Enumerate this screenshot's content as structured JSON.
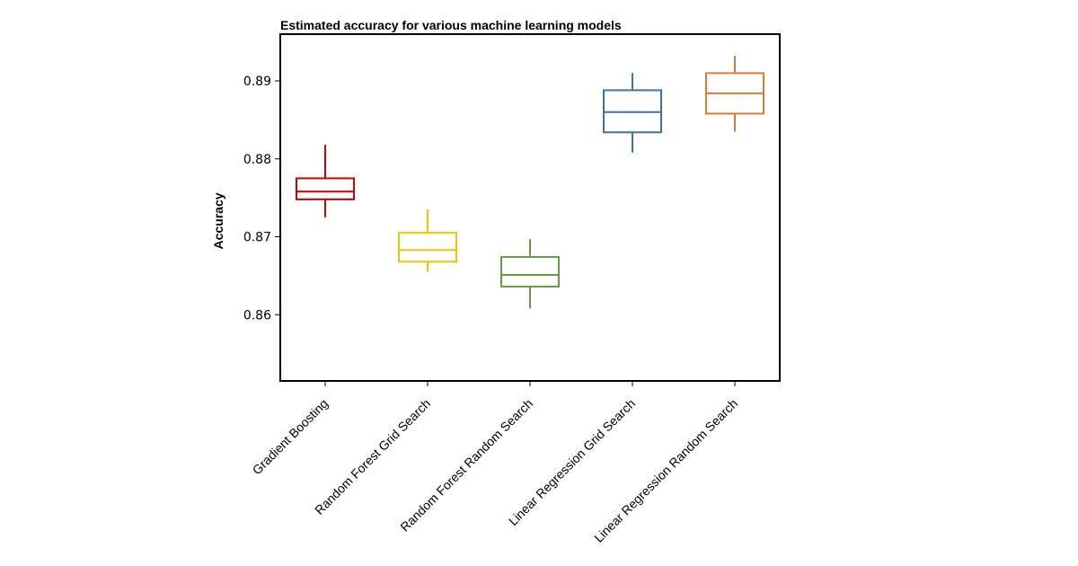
{
  "chart_data": {
    "type": "box",
    "title": "Estimated accuracy for various machine learning models",
    "xlabel": "",
    "ylabel": "Accuracy",
    "ylim": [
      0.8515,
      0.896
    ],
    "yticks": [
      0.86,
      0.87,
      0.88,
      0.89
    ],
    "ytick_labels": [
      "0.86",
      "0.87",
      "0.88",
      "0.89"
    ],
    "grid": false,
    "legend": "none",
    "categories": [
      "Gradient Boosting",
      "Random Forest Grid Search",
      "Random Forest Random Search",
      "Linear Regression Grid Search",
      "Linear Regression Random Search"
    ],
    "series": [
      {
        "category": "Gradient Boosting",
        "color": "#cc0000",
        "whisker_low": 0.8725,
        "q1": 0.8748,
        "median": 0.8758,
        "q3": 0.8775,
        "whisker_high": 0.8818
      },
      {
        "category": "Random Forest Grid Search",
        "color": "#f2c200",
        "whisker_low": 0.8655,
        "q1": 0.8668,
        "median": 0.8683,
        "q3": 0.8705,
        "whisker_high": 0.8735
      },
      {
        "category": "Random Forest Random Search",
        "color": "#6a9a3e",
        "whisker_low": 0.8608,
        "q1": 0.8636,
        "median": 0.8651,
        "q3": 0.8674,
        "whisker_high": 0.8697
      },
      {
        "category": "Linear Regression Grid Search",
        "color": "#3f6fb0",
        "whisker_low": 0.8808,
        "q1": 0.8834,
        "median": 0.886,
        "q3": 0.8888,
        "whisker_high": 0.891
      },
      {
        "category": "Linear Regression Random Search",
        "color": "#e07b2e",
        "whisker_low": 0.8835,
        "q1": 0.8858,
        "median": 0.8884,
        "q3": 0.891,
        "whisker_high": 0.8932
      }
    ]
  }
}
